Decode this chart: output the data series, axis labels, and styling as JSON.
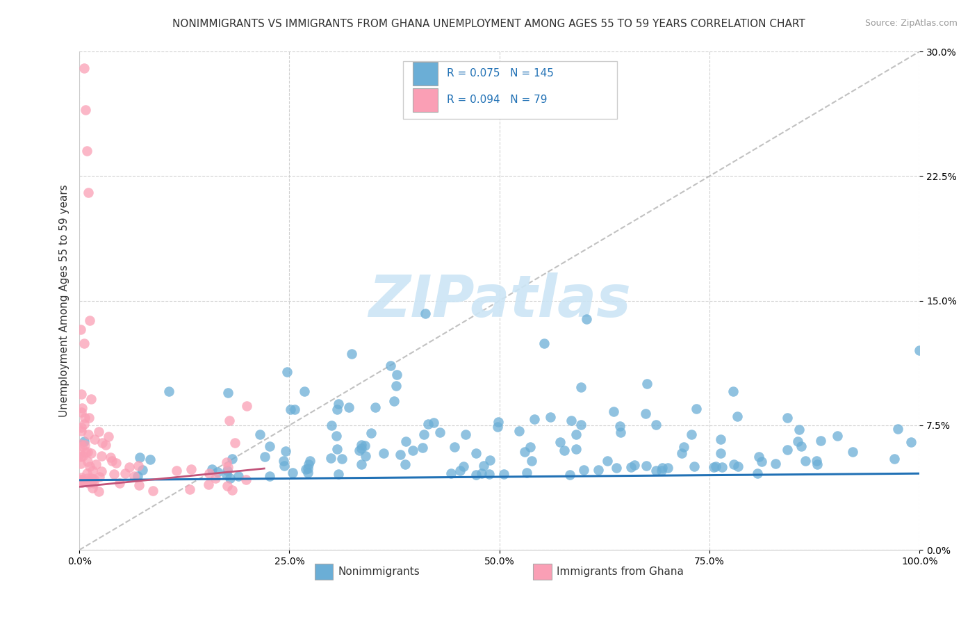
{
  "title": "NONIMMIGRANTS VS IMMIGRANTS FROM GHANA UNEMPLOYMENT AMONG AGES 55 TO 59 YEARS CORRELATION CHART",
  "source": "Source: ZipAtlas.com",
  "ylabel": "Unemployment Among Ages 55 to 59 years",
  "xlim": [
    0,
    1
  ],
  "ylim": [
    0,
    0.3
  ],
  "xticks": [
    0,
    0.25,
    0.5,
    0.75,
    1.0
  ],
  "xticklabels": [
    "0.0%",
    "25.0%",
    "50.0%",
    "75.0%",
    "100.0%"
  ],
  "yticks": [
    0,
    0.075,
    0.15,
    0.225,
    0.3
  ],
  "yticklabels": [
    "0.0%",
    "7.5%",
    "15.0%",
    "22.5%",
    "30.0%"
  ],
  "legend_labels": [
    "Nonimmigrants",
    "Immigrants from Ghana"
  ],
  "legend_R": [
    0.075,
    0.094
  ],
  "legend_N": [
    145,
    79
  ],
  "blue_color": "#6baed6",
  "pink_color": "#fa9fb5",
  "blue_line_color": "#2171b5",
  "pink_line_color": "#c2547a",
  "ref_line_color": "#bbbbbb",
  "watermark_color": "#cce5f5",
  "background_color": "#ffffff",
  "grid_color": "#cccccc",
  "title_fontsize": 11,
  "axis_label_fontsize": 11,
  "tick_fontsize": 10
}
